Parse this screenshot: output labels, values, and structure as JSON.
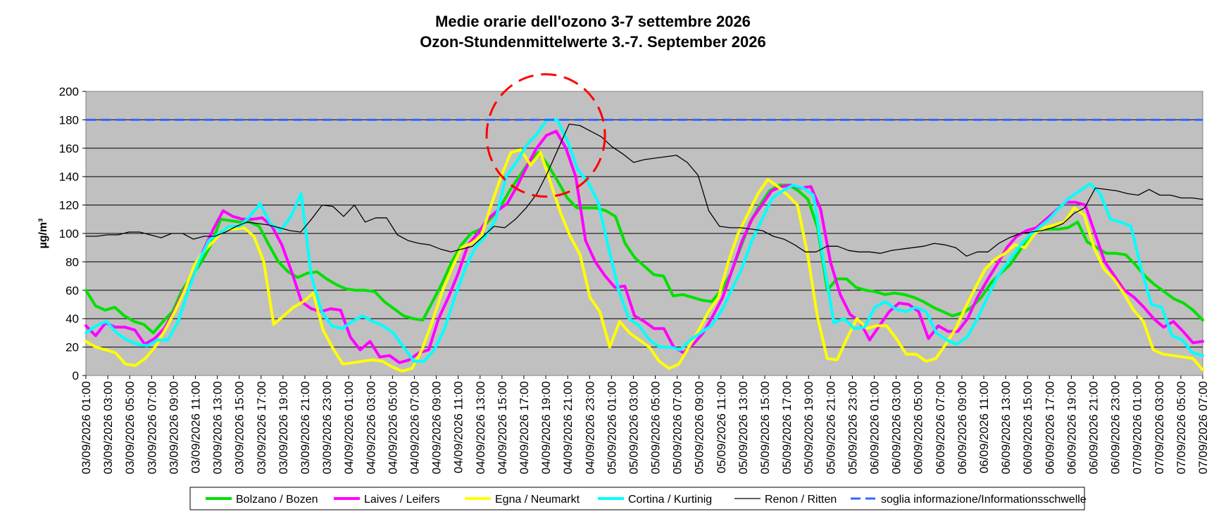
{
  "chart_data": {
    "type": "line",
    "title": "Medie orarie dell'ozono 3-7 settembre 2026",
    "subtitle": "Ozon-Stundenmittelwerte 3.-7. September 2026",
    "xlabel": "",
    "ylabel": "µg/m³",
    "ylim": [
      0,
      200
    ],
    "yticks": [
      0,
      20,
      40,
      60,
      80,
      100,
      120,
      140,
      160,
      180,
      200
    ],
    "grid": true,
    "legend_position": "bottom",
    "x_start": "03/09/2026 01:00",
    "x_end": "07/09/2026 07:00",
    "x_step_hours": 1,
    "x_tick_labels": [
      "03/09/2026 01:00",
      "03/09/2026 03:00",
      "03/09/2026 05:00",
      "03/09/2026 07:00",
      "03/09/2026 09:00",
      "03/09/2026 11:00",
      "03/09/2026 13:00",
      "03/09/2026 15:00",
      "03/09/2026 17:00",
      "03/09/2026 19:00",
      "03/09/2026 21:00",
      "03/09/2026 23:00",
      "04/09/2026 01:00",
      "04/09/2026 03:00",
      "04/09/2026 05:00",
      "04/09/2026 07:00",
      "04/09/2026 09:00",
      "04/09/2026 11:00",
      "04/09/2026 13:00",
      "04/09/2026 15:00",
      "04/09/2026 17:00",
      "04/09/2026 19:00",
      "04/09/2026 21:00",
      "04/09/2026 23:00",
      "05/09/2026 01:00",
      "05/09/2026 03:00",
      "05/09/2026 05:00",
      "05/09/2026 07:00",
      "05/09/2026 09:00",
      "05/09/2026 11:00",
      "05/09/2026 13:00",
      "05/09/2026 15:00",
      "05/09/2026 17:00",
      "05/09/2026 19:00",
      "05/09/2026 21:00",
      "05/09/2026 23:00",
      "06/09/2026 01:00",
      "06/09/2026 03:00",
      "06/09/2026 05:00",
      "06/09/2026 07:00",
      "06/09/2026 09:00",
      "06/09/2026 11:00",
      "06/09/2026 13:00",
      "06/09/2026 15:00",
      "06/09/2026 17:00",
      "06/09/2026 19:00",
      "06/09/2026 21:00",
      "06/09/2026 23:00",
      "07/09/2026 01:00",
      "07/09/2026 03:00",
      "07/09/2026 05:00",
      "07/09/2026 07:00"
    ],
    "series": [
      {
        "name": "Bolzano / Bozen",
        "color": "#00e000",
        "style": "solid-thick",
        "values": [
          60,
          49,
          46,
          48,
          42,
          38,
          36,
          30,
          38,
          45,
          60,
          70,
          80,
          92,
          110,
          109,
          108,
          108,
          105,
          92,
          80,
          73,
          69,
          72,
          73,
          68,
          64,
          61,
          60,
          60,
          59,
          52,
          47,
          42,
          40,
          39,
          52,
          65,
          80,
          92,
          100,
          103,
          110,
          118,
          130,
          140,
          150,
          157,
          148,
          137,
          125,
          118,
          118,
          118,
          116,
          112,
          93,
          83,
          77,
          71,
          70,
          56,
          57,
          55,
          53,
          52,
          60,
          72,
          90,
          108,
          120,
          130,
          134,
          134,
          130,
          124,
          104,
          60,
          68,
          68,
          62,
          60,
          59,
          57,
          58,
          57,
          55,
          52,
          48,
          45,
          42,
          44,
          48,
          55,
          65,
          72,
          78,
          88,
          97,
          103,
          103,
          103,
          104,
          108,
          94,
          90,
          86,
          86,
          85,
          78,
          70,
          64,
          59,
          54,
          51,
          46,
          39
        ]
      },
      {
        "name": "Laives / Leifers",
        "color": "#ff00ff",
        "style": "solid-thick",
        "values": [
          35,
          28,
          37,
          34,
          34,
          32,
          22,
          26,
          33,
          45,
          60,
          72,
          88,
          103,
          116,
          112,
          110,
          110,
          111,
          105,
          92,
          73,
          52,
          47,
          45,
          47,
          46,
          27,
          18,
          24,
          13,
          14,
          9,
          11,
          16,
          18,
          40,
          55,
          72,
          92,
          100,
          110,
          116,
          121,
          133,
          147,
          160,
          169,
          172,
          160,
          140,
          95,
          80,
          70,
          62,
          63,
          42,
          38,
          33,
          33,
          20,
          16,
          22,
          30,
          42,
          55,
          75,
          95,
          110,
          120,
          130,
          133,
          134,
          132,
          133,
          117,
          80,
          57,
          43,
          38,
          25,
          35,
          45,
          51,
          50,
          45,
          26,
          35,
          31,
          31,
          40,
          55,
          67,
          78,
          90,
          98,
          102,
          104,
          110,
          116,
          122,
          122,
          120,
          100,
          80,
          70,
          60,
          55,
          48,
          40,
          34,
          38,
          31,
          23,
          24
        ]
      },
      {
        "name": "Egna / Neumarkt",
        "color": "#ffff00",
        "style": "solid-thick",
        "values": [
          24,
          20,
          18,
          16,
          8,
          7,
          12,
          20,
          32,
          45,
          60,
          78,
          88,
          95,
          103,
          103,
          104,
          98,
          80,
          36,
          42,
          48,
          52,
          58,
          32,
          19,
          8,
          9,
          10,
          11,
          10,
          6,
          3,
          5,
          18,
          37,
          58,
          75,
          90,
          93,
          98,
          120,
          140,
          157,
          159,
          148,
          157,
          136,
          115,
          98,
          85,
          55,
          45,
          20,
          38,
          30,
          25,
          20,
          10,
          5,
          8,
          20,
          32,
          45,
          55,
          80,
          100,
          114,
          128,
          138,
          133,
          127,
          120,
          86,
          42,
          12,
          11,
          26,
          40,
          33,
          35,
          35,
          26,
          15,
          15,
          10,
          12,
          22,
          33,
          48,
          62,
          75,
          82,
          86,
          92,
          90,
          100,
          104,
          106,
          108,
          118,
          113,
          90,
          75,
          68,
          58,
          46,
          38,
          18,
          15,
          14,
          13,
          12,
          4
        ]
      },
      {
        "name": "Cortina  / Kurtinig",
        "color": "#00ffff",
        "style": "solid-thick",
        "values": [
          30,
          35,
          38,
          30,
          25,
          22,
          21,
          25,
          25,
          38,
          60,
          80,
          95,
          100,
          105,
          105,
          112,
          121,
          107,
          102,
          112,
          128,
          70,
          45,
          35,
          33,
          38,
          42,
          38,
          35,
          30,
          20,
          10,
          10,
          18,
          33,
          55,
          75,
          90,
          98,
          110,
          140,
          150,
          162,
          170,
          180,
          180,
          165,
          145,
          136,
          122,
          90,
          60,
          40,
          35,
          25,
          20,
          20,
          18,
          25,
          30,
          35,
          45,
          60,
          75,
          95,
          110,
          125,
          130,
          134,
          132,
          127,
          80,
          37,
          40,
          33,
          34,
          48,
          52,
          47,
          45,
          48,
          45,
          30,
          25,
          22,
          27,
          40,
          55,
          70,
          80,
          90,
          98,
          104,
          110,
          118,
          125,
          130,
          135,
          128,
          110,
          108,
          105,
          75,
          50,
          48,
          28,
          25,
          16,
          14
        ]
      },
      {
        "name": "Renon / Ritten",
        "color": "#000000",
        "style": "solid-thin",
        "values": [
          98,
          98,
          99,
          99,
          101,
          101,
          99,
          97,
          100,
          100,
          96,
          98,
          98,
          101,
          105,
          108,
          107,
          106,
          104,
          102,
          101,
          110,
          120,
          119,
          112,
          120,
          108,
          111,
          111,
          99,
          95,
          93,
          92,
          89,
          87,
          89,
          91,
          98,
          105,
          104,
          110,
          118,
          128,
          143,
          160,
          177,
          176,
          172,
          168,
          161,
          156,
          150,
          152,
          153,
          154,
          155,
          150,
          141,
          116,
          105,
          104,
          104,
          103,
          102,
          98,
          96,
          92,
          87,
          87,
          91,
          91,
          88,
          87,
          87,
          86,
          88,
          89,
          90,
          91,
          93,
          92,
          90,
          84,
          87,
          87,
          93,
          97,
          100,
          101,
          102,
          104,
          107,
          114,
          118,
          132,
          131,
          130,
          128,
          127,
          131,
          127,
          127,
          125,
          125,
          124
        ]
      },
      {
        "name": "soglia informazione/Informationsschwelle",
        "color": "#3366ff",
        "style": "dashed",
        "values": [
          180,
          180
        ]
      }
    ],
    "annotations": [
      {
        "type": "dashed-circle",
        "color": "#ff0000",
        "center_x": "04/09/2026 19:00",
        "center_y": 169,
        "note": ""
      }
    ]
  }
}
